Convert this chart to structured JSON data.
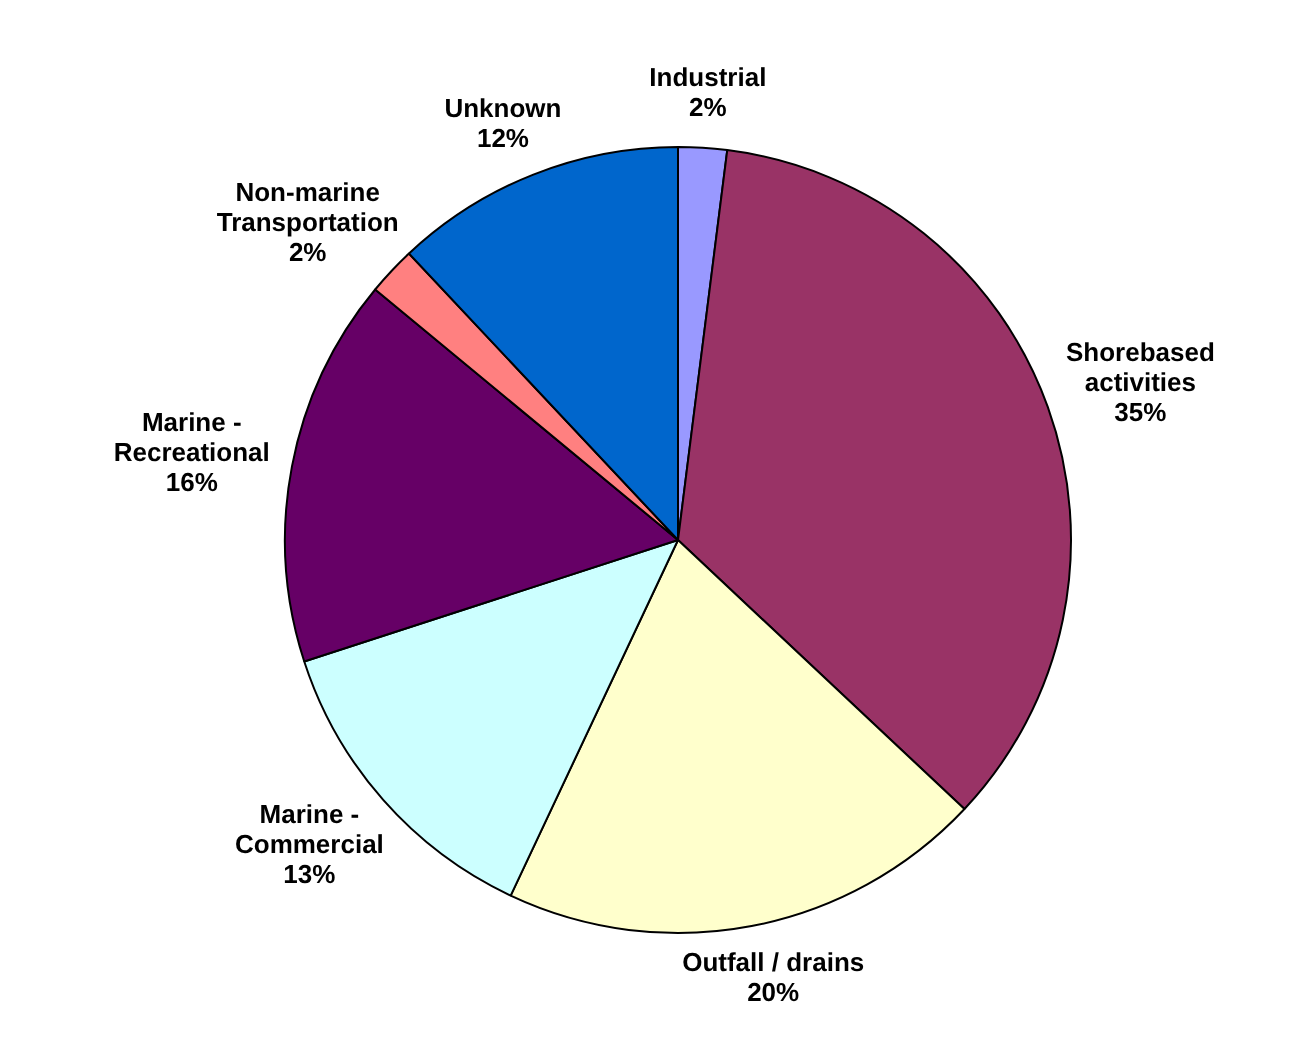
{
  "chart_data": {
    "type": "pie",
    "categories": [
      "Industrial",
      "Shorebased\nactivities",
      "Outfall / drains",
      "Marine -\nCommercial",
      "Marine -\nRecreational",
      "Non-marine\nTransportation",
      "Unknown"
    ],
    "values": [
      2,
      35,
      20,
      13,
      16,
      2,
      12
    ],
    "colors": [
      "#9999ff",
      "#993366",
      "#ffffcc",
      "#ccffff",
      "#660066",
      "#ff8080",
      "#0066cc"
    ],
    "value_labels": [
      "2%",
      "35%",
      "20%",
      "13%",
      "16%",
      "2%",
      "12%"
    ],
    "legend": false
  }
}
